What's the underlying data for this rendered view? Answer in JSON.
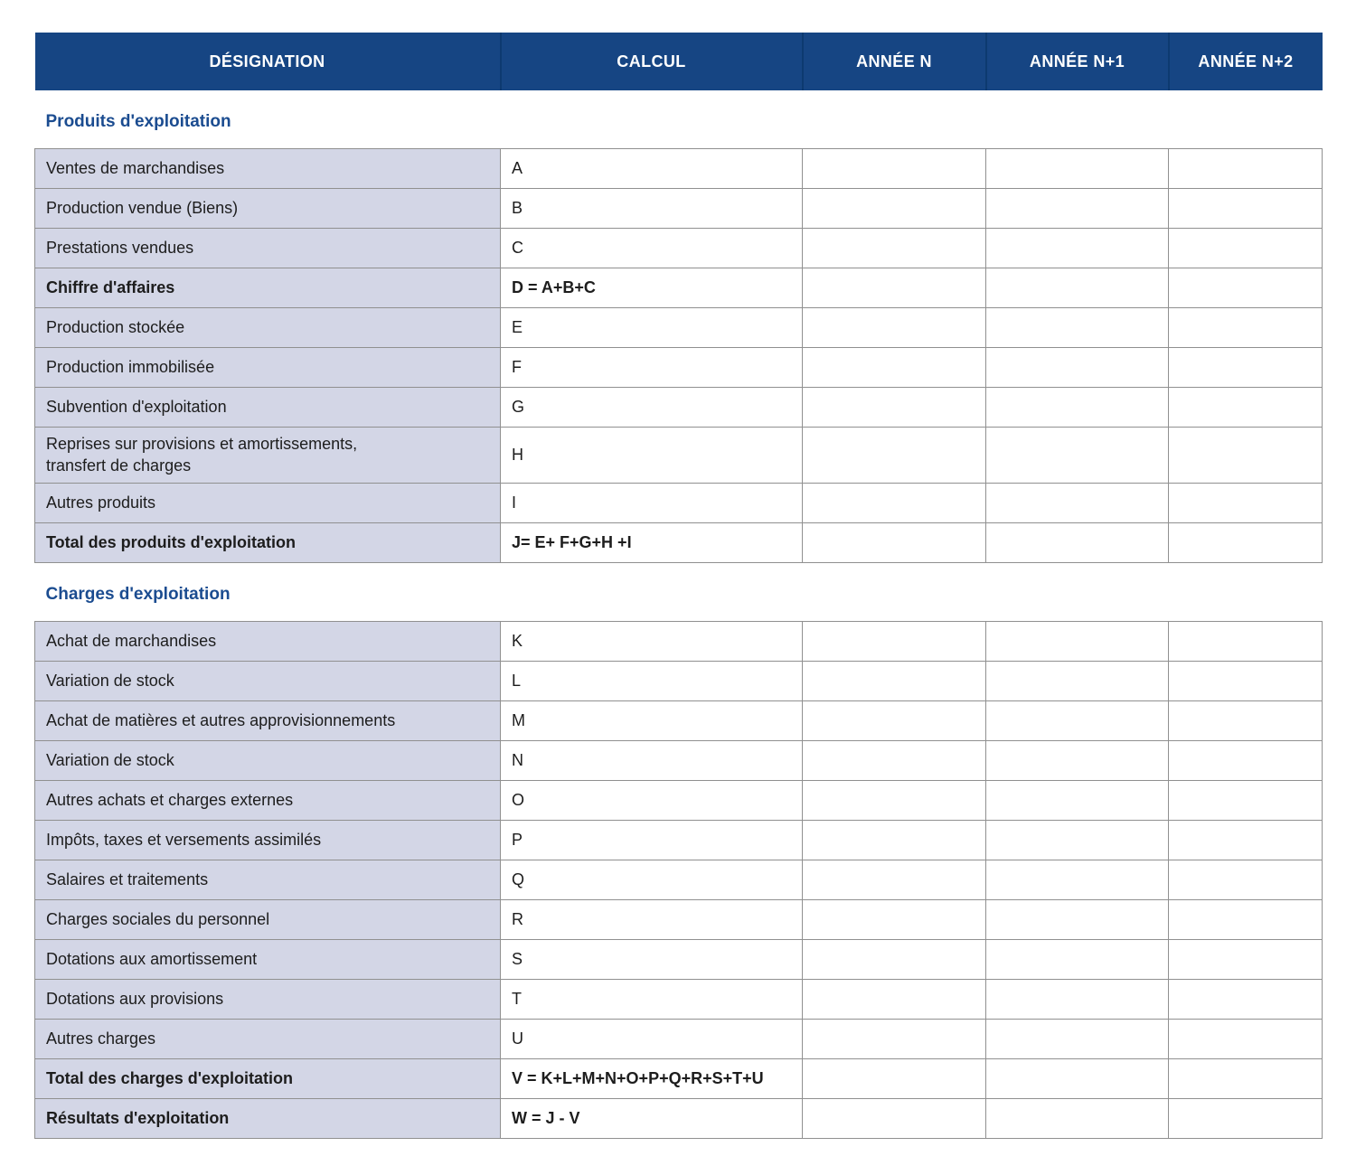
{
  "colors": {
    "header_bg": "#164583",
    "header_divider": "#0d3a70",
    "header_text": "#ffffff",
    "section_title_text": "#1b4c90",
    "label_cell_bg": "#d3d6e6",
    "cell_border": "#909090",
    "body_text": "#1d1d1d"
  },
  "table": {
    "columns": [
      {
        "id": "designation",
        "label": "DÉSIGNATION"
      },
      {
        "id": "calcul",
        "label": "CALCUL"
      },
      {
        "id": "annee-n",
        "label": "ANNÉE N"
      },
      {
        "id": "annee-n1",
        "label": "ANNÉE N+1"
      },
      {
        "id": "annee-n2",
        "label": "ANNÉE N+2"
      }
    ],
    "sections": [
      {
        "title": "Produits d'exploitation",
        "rows": [
          {
            "label": "Ventes de marchandises",
            "calc": "A",
            "bold": false,
            "values": [
              "",
              "",
              ""
            ]
          },
          {
            "label": "Production vendue (Biens)",
            "calc": "B",
            "bold": false,
            "values": [
              "",
              "",
              ""
            ]
          },
          {
            "label": "Prestations vendues",
            "calc": "C",
            "bold": false,
            "values": [
              "",
              "",
              ""
            ]
          },
          {
            "label": "Chiffre d'affaires",
            "calc": "D = A+B+C",
            "bold": true,
            "values": [
              "",
              "",
              ""
            ]
          },
          {
            "label": "Production stockée",
            "calc": "E",
            "bold": false,
            "values": [
              "",
              "",
              ""
            ]
          },
          {
            "label": "Production immobilisée",
            "calc": "F",
            "bold": false,
            "values": [
              "",
              "",
              ""
            ]
          },
          {
            "label": "Subvention d'exploitation",
            "calc": "G",
            "bold": false,
            "values": [
              "",
              "",
              ""
            ]
          },
          {
            "label_lines": [
              "Reprises sur provisions et amortissements,",
              "transfert de charges"
            ],
            "calc": "H",
            "bold": false,
            "values": [
              "",
              "",
              ""
            ]
          },
          {
            "label": "Autres produits",
            "calc": "I",
            "bold": false,
            "values": [
              "",
              "",
              ""
            ]
          },
          {
            "label": "Total des produits d'exploitation",
            "calc": "J= E+ F+G+H +I",
            "bold": true,
            "values": [
              "",
              "",
              ""
            ]
          }
        ]
      },
      {
        "title": "Charges d'exploitation",
        "rows": [
          {
            "label": "Achat de marchandises",
            "calc": "K",
            "bold": false,
            "values": [
              "",
              "",
              ""
            ]
          },
          {
            "label": "Variation de stock",
            "calc": "L",
            "bold": false,
            "values": [
              "",
              "",
              ""
            ]
          },
          {
            "label": "Achat de matières et autres approvisionnements",
            "calc": "M",
            "bold": false,
            "values": [
              "",
              "",
              ""
            ]
          },
          {
            "label": "Variation de stock",
            "calc": "N",
            "bold": false,
            "values": [
              "",
              "",
              ""
            ]
          },
          {
            "label": "Autres achats et charges externes",
            "calc": "O",
            "bold": false,
            "values": [
              "",
              "",
              ""
            ]
          },
          {
            "label": "Impôts, taxes et versements assimilés",
            "calc": "P",
            "bold": false,
            "values": [
              "",
              "",
              ""
            ]
          },
          {
            "label": "Salaires et traitements",
            "calc": "Q",
            "bold": false,
            "values": [
              "",
              "",
              ""
            ]
          },
          {
            "label": "Charges sociales du personnel",
            "calc": "R",
            "bold": false,
            "values": [
              "",
              "",
              ""
            ]
          },
          {
            "label": "Dotations aux amortissement",
            "calc": "S",
            "bold": false,
            "values": [
              "",
              "",
              ""
            ]
          },
          {
            "label": "Dotations aux provisions",
            "calc": "T",
            "bold": false,
            "values": [
              "",
              "",
              ""
            ]
          },
          {
            "label": "Autres charges",
            "calc": "U",
            "bold": false,
            "values": [
              "",
              "",
              ""
            ]
          },
          {
            "label": "Total des charges d'exploitation",
            "calc": "V = K+L+M+N+O+P+Q+R+S+T+U",
            "bold": true,
            "values": [
              "",
              "",
              ""
            ]
          },
          {
            "label": "Résultats d'exploitation",
            "calc": "W = J - V",
            "bold": true,
            "values": [
              "",
              "",
              ""
            ]
          }
        ]
      }
    ]
  }
}
